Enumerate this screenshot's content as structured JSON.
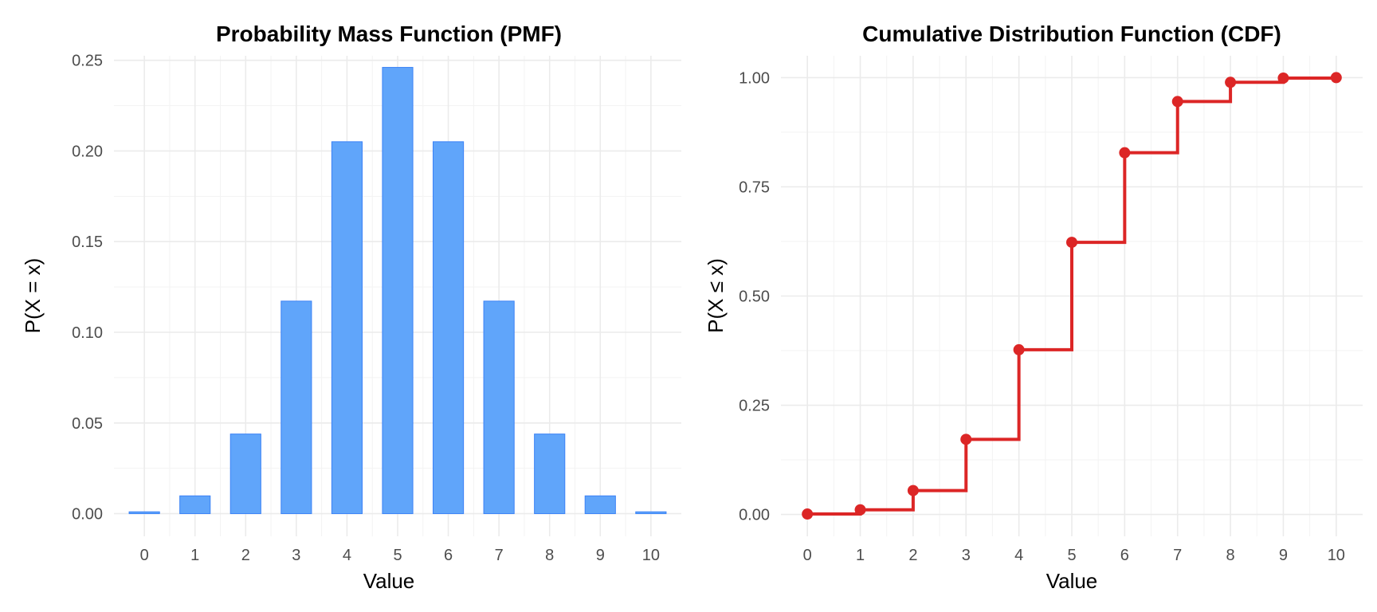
{
  "chart_data": [
    {
      "type": "bar",
      "title": "Probability Mass Function (PMF)",
      "xlabel": "Value",
      "ylabel": "P(X = x)",
      "categories": [
        0,
        1,
        2,
        3,
        4,
        5,
        6,
        7,
        8,
        9,
        10
      ],
      "values": [
        0.001,
        0.0098,
        0.0439,
        0.1172,
        0.2051,
        0.2461,
        0.2051,
        0.1172,
        0.0439,
        0.0098,
        0.001
      ],
      "ylim": [
        -0.0125,
        0.2525
      ],
      "yticks": [
        0.0,
        0.05,
        0.1,
        0.15,
        0.2,
        0.25
      ],
      "ytick_labels": [
        "0.00",
        "0.05",
        "0.10",
        "0.15",
        "0.20",
        "0.25"
      ],
      "xticks": [
        0,
        1,
        2,
        3,
        4,
        5,
        6,
        7,
        8,
        9,
        10
      ],
      "bar_color": "#60a5fa",
      "bar_edge_color": "#3b82f6",
      "grid": true,
      "legend": "none"
    },
    {
      "type": "line",
      "step": true,
      "title": "Cumulative Distribution Function (CDF)",
      "xlabel": "Value",
      "ylabel": "P(X ≤ x)",
      "x": [
        0,
        1,
        2,
        3,
        4,
        5,
        6,
        7,
        8,
        9,
        10
      ],
      "values": [
        0.001,
        0.0107,
        0.0547,
        0.1719,
        0.377,
        0.623,
        0.8281,
        0.9453,
        0.9893,
        0.999,
        1.0
      ],
      "ylim": [
        -0.05,
        1.05
      ],
      "yticks": [
        0.0,
        0.25,
        0.5,
        0.75,
        1.0
      ],
      "ytick_labels": [
        "0.00",
        "0.25",
        "0.50",
        "0.75",
        "1.00"
      ],
      "xticks": [
        0,
        1,
        2,
        3,
        4,
        5,
        6,
        7,
        8,
        9,
        10
      ],
      "line_color": "#dc2626",
      "grid": true,
      "legend": "none"
    }
  ]
}
